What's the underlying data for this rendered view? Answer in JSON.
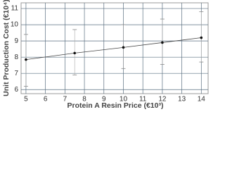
{
  "chart_data": {
    "type": "line",
    "x_label": "Protein A Resin Price (€10³)",
    "y_label": "Unit Production Cost (€10⁴)",
    "x": [
      5,
      7.5,
      10,
      12,
      14
    ],
    "series": [
      {
        "color": "#444444",
        "values": [
          7.85,
          8.25,
          8.6,
          8.9,
          9.2
        ],
        "low": [
          6.2,
          6.9,
          7.3,
          7.55,
          7.7
        ],
        "high": [
          9.4,
          9.7,
          10.0,
          10.35,
          10.8
        ]
      }
    ],
    "xlim": [
      4.75,
      14.35
    ],
    "ylim": [
      5.75,
      11.35
    ],
    "xticks": [
      5,
      6,
      7,
      8,
      9,
      10,
      11,
      12,
      13,
      14
    ],
    "yticks": [
      6,
      7,
      8,
      9,
      10,
      11
    ],
    "grid": true
  }
}
